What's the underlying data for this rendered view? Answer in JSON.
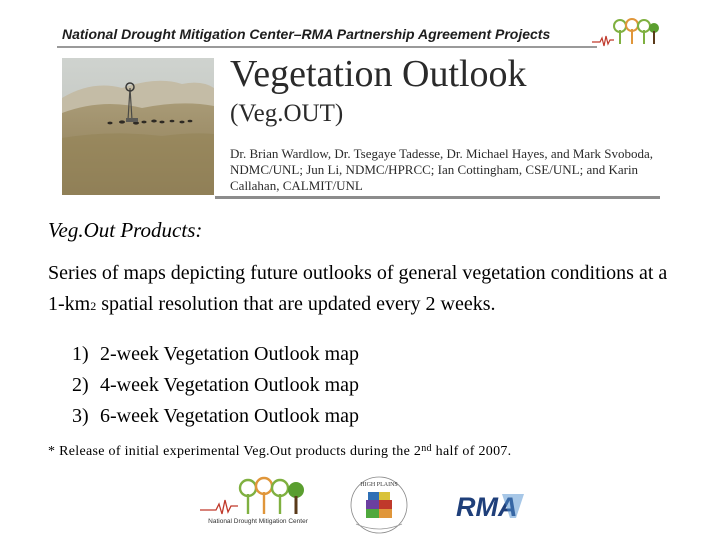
{
  "header": {
    "title": "National Drought Mitigation Center–RMA Partnership Agreement Projects"
  },
  "banner": {
    "title": "Vegetation Outlook",
    "subtitle": "(Veg.OUT)",
    "authors": "Dr. Brian Wardlow, Dr. Tsegaye Tadesse, Dr. Michael Hayes, and Mark Svoboda, NDMC/UNL; Jun Li, NDMC/HPRCC; Ian Cottingham, CSE/UNL; and Karin Callahan, CALMIT/UNL"
  },
  "section": {
    "heading": "Veg.Out Products:",
    "intro_before": "Series of maps depicting future outlooks of general vegetation conditions at a 1-km",
    "intro_sup": "2",
    "intro_after": " spatial resolution that are updated every 2 weeks.",
    "items": [
      {
        "number": "1)",
        "label": "2-week Vegetation Outlook map"
      },
      {
        "number": "2)",
        "label": "4-week Vegetation Outlook map"
      },
      {
        "number": "3)",
        "label": "6-week Vegetation Outlook map"
      }
    ]
  },
  "footnote": {
    "before": "* Release of initial experimental Veg.Out products during the 2",
    "sup": "nd",
    "after": " half of 2007."
  },
  "logos": {
    "ndmc_text": "National Drought Mitigation Center",
    "hp_text": "HIGH PLAINS",
    "rma_text": "RMA"
  },
  "colors": {
    "ndmc_green": "#7fb040",
    "ndmc_orange": "#e0963a",
    "rma_blue": "#1f3f7a",
    "rule_gray": "#8c8c8c"
  }
}
